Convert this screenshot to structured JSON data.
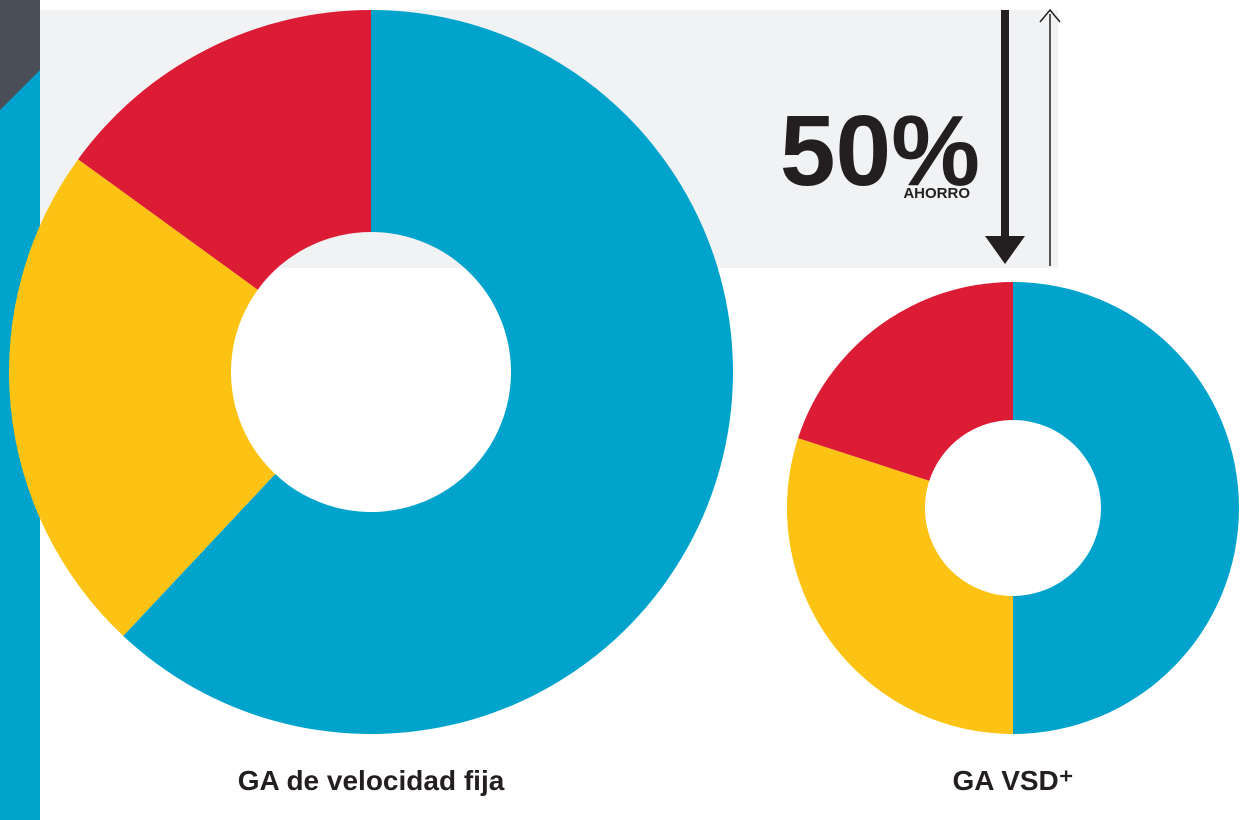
{
  "chart_data": [
    {
      "type": "pie",
      "title": "GA de velocidad fija",
      "values": [
        62,
        23,
        15
      ],
      "colors": [
        "#00a3cc",
        "#fcc315",
        "#dc1c35"
      ],
      "donut": true
    },
    {
      "type": "pie",
      "title": "GA VSD⁺",
      "values": [
        50,
        30,
        20
      ],
      "colors": [
        "#00a3cc",
        "#fcc315",
        "#dc1c35"
      ],
      "donut": true
    }
  ],
  "savings": {
    "label": "50%",
    "caption": "AHORRO"
  }
}
